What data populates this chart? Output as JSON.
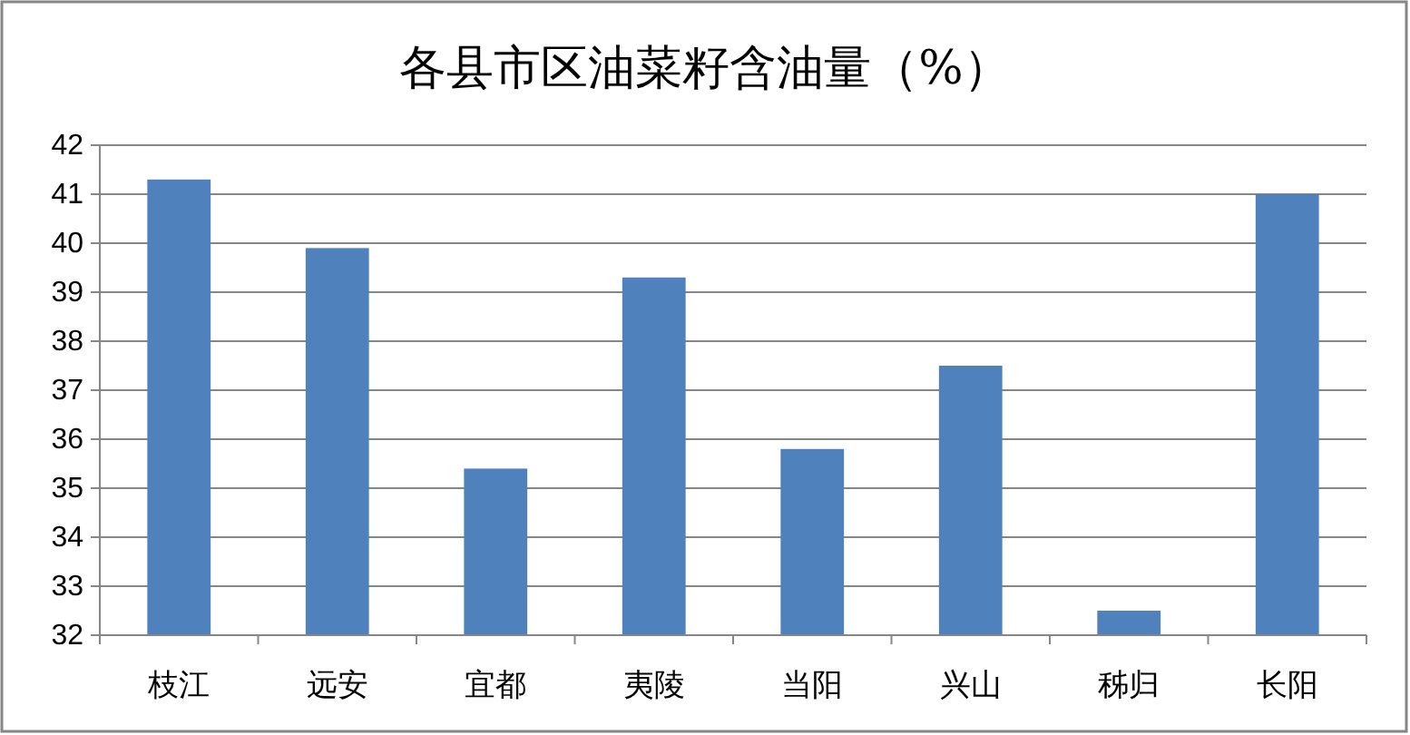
{
  "chart_data": {
    "type": "bar",
    "title": "各县市区油菜籽含油量（%）",
    "categories": [
      "枝江",
      "远安",
      "宜都",
      "夷陵",
      "当阳",
      "兴山",
      "秭归",
      "长阳"
    ],
    "values": [
      41.3,
      39.9,
      35.4,
      39.3,
      35.8,
      37.5,
      32.5,
      41.0
    ],
    "color": "#4f81bd",
    "ylim": [
      32,
      42
    ],
    "yticks": [
      32,
      33,
      34,
      35,
      36,
      37,
      38,
      39,
      40,
      41,
      42
    ],
    "grid": "y"
  }
}
